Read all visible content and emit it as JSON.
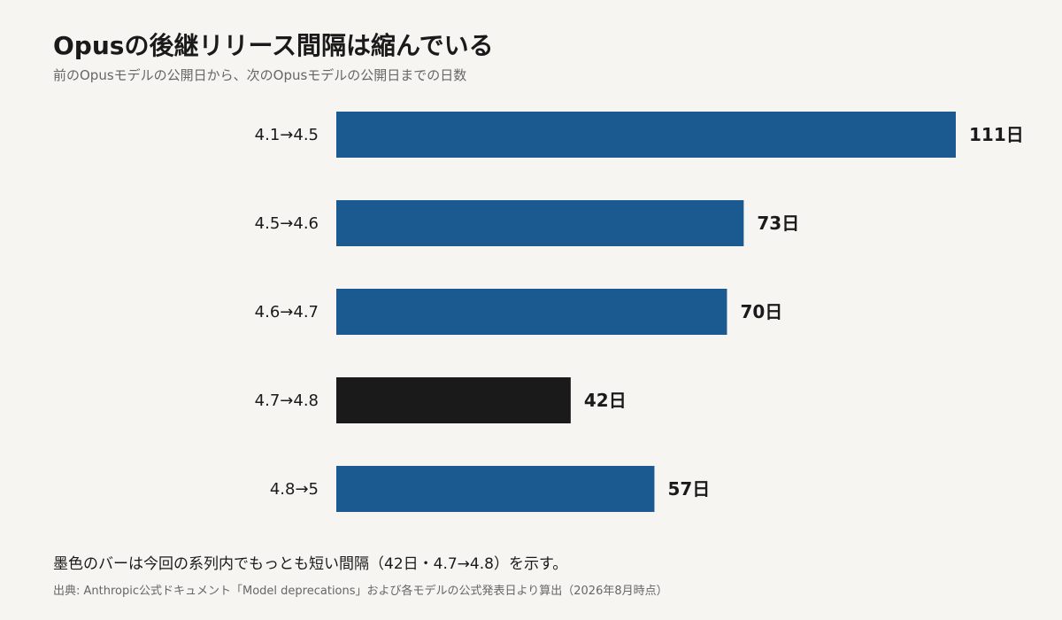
{
  "chart_data": {
    "type": "bar",
    "orientation": "horizontal",
    "title": "Opusの後継リリース間隔は縮んでいる",
    "subtitle": "前のOpusモデルの公開日から、次のOpusモデルの公開日までの日数",
    "categories": [
      "4.1→4.5",
      "4.5→4.6",
      "4.6→4.7",
      "4.7→4.8",
      "4.8→5"
    ],
    "values": [
      111,
      73,
      70,
      42,
      57
    ],
    "value_labels": [
      "111日",
      "73日",
      "70日",
      "42日",
      "57日"
    ],
    "highlight_index": 3,
    "colors": {
      "default": "#1a5a90",
      "highlight": "#1a1a1a"
    },
    "xlim": [
      0,
      111
    ],
    "grid": false,
    "legend": "none"
  },
  "note": "墨色のバーは今回の系列内でもっとも短い間隔（42日・4.7→4.8）を示す。",
  "source": "出典: Anthropic公式ドキュメント「Model deprecations」および各モデルの公式発表日より算出（2026年8月時点）"
}
